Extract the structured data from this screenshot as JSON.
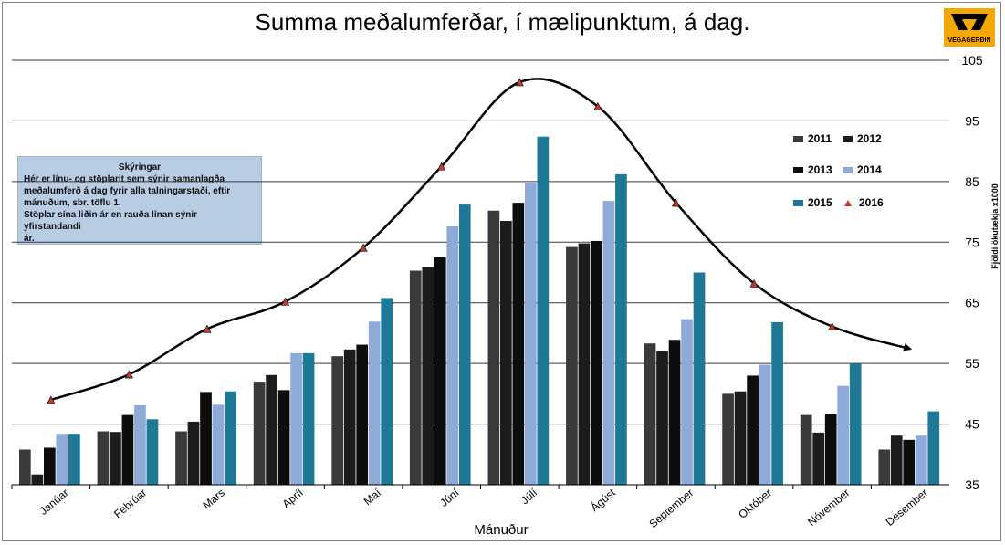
{
  "chart_data": {
    "type": "bar",
    "title": "Summa meðalumferðar, í mælipunktum, á dag.",
    "xlabel": "Mánuður",
    "ylabel": "Fjöldi ökutækja x1000",
    "ylim": [
      35,
      105
    ],
    "yticks": [
      35,
      45,
      55,
      65,
      75,
      85,
      95,
      105
    ],
    "grid": true,
    "legend_placement": "right",
    "categories": [
      "Janúar",
      "Febrúar",
      "Mars",
      "Apríl",
      "Maí",
      "Júní",
      "Júlí",
      "Ágúst",
      "September",
      "Október",
      "Nóvember",
      "Desember"
    ],
    "series": [
      {
        "name": "2011",
        "type": "bar",
        "color": "#3a3a3a",
        "values": [
          40.8,
          43.8,
          43.8,
          52.0,
          56.2,
          70.3,
          80.2,
          74.2,
          58.3,
          50.0,
          46.5,
          40.8
        ]
      },
      {
        "name": "2012",
        "type": "bar",
        "color": "#1c1c1c",
        "values": [
          36.7,
          43.7,
          45.4,
          53.1,
          57.3,
          70.9,
          78.5,
          74.8,
          57.0,
          50.4,
          43.6,
          43.1
        ]
      },
      {
        "name": "2013",
        "type": "bar",
        "color": "#0d0d0d",
        "values": [
          41.1,
          46.5,
          50.3,
          50.6,
          58.1,
          72.5,
          81.5,
          75.2,
          58.9,
          53.0,
          46.6,
          42.4
        ]
      },
      {
        "name": "2014",
        "type": "bar",
        "color": "#8eaad8",
        "values": [
          43.4,
          48.1,
          48.2,
          56.7,
          61.9,
          77.6,
          84.8,
          81.8,
          62.3,
          54.8,
          51.3,
          43.1
        ]
      },
      {
        "name": "2015",
        "type": "bar",
        "color": "#1f7895",
        "values": [
          43.4,
          45.8,
          50.4,
          56.7,
          65.8,
          81.2,
          92.4,
          86.2,
          70.0,
          61.8,
          55.0,
          47.1
        ]
      },
      {
        "name": "2016",
        "type": "line",
        "color": "#000000",
        "marker_color": "#c0392b",
        "values": [
          49.0,
          53.2,
          60.7,
          65.2,
          74.1,
          87.5,
          101.4,
          97.4,
          81.5,
          68.2,
          61.1,
          57.4
        ]
      }
    ]
  },
  "legend": {
    "title": "Skýringar",
    "line1": "Hér er línu- og stöplarit sem sýnir samanlagða",
    "line2": "meðalumferð  á dag  fyrir alla talningarstaði, eftir",
    "line3": "mánuðum, sbr. töflu 1.",
    "line4": "Stöplar sína liðin ár en rauða línan sýnir yfirstandandi",
    "line5": "ár."
  },
  "logo": {
    "text": "VEGAGERÐIN",
    "color": "#f5a800"
  }
}
